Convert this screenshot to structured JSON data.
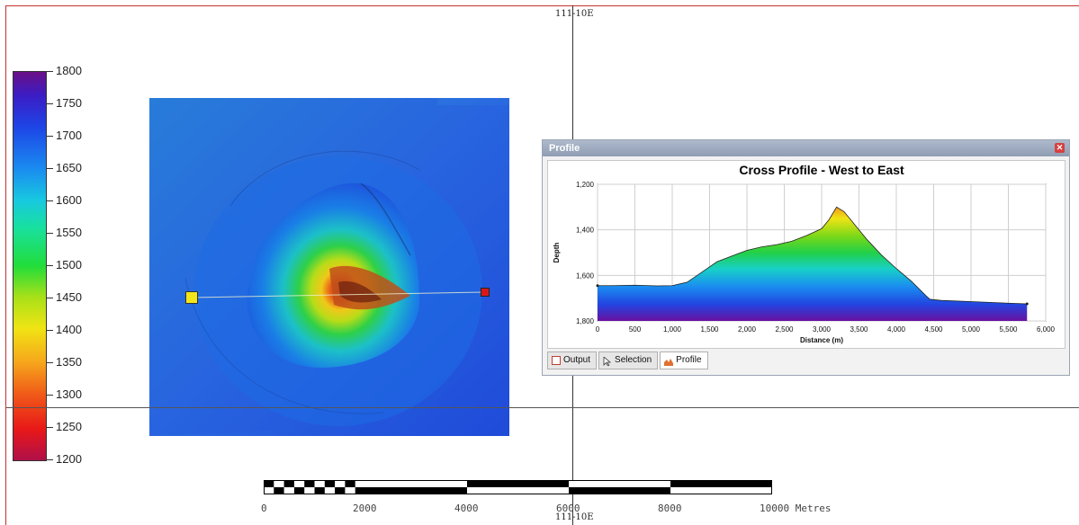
{
  "map": {
    "coord_top": "111-10E",
    "coord_bottom": "111-10E"
  },
  "legend": {
    "labels": [
      "1800",
      "1750",
      "1700",
      "1650",
      "1600",
      "1550",
      "1500",
      "1450",
      "1400",
      "1350",
      "1300",
      "1250",
      "1200"
    ],
    "min": 1200,
    "max": 1800
  },
  "markers": {
    "start_color": "#f2e61a",
    "end_color": "#d81818"
  },
  "profile_panel": {
    "title": "Profile",
    "close_icon": "close-icon",
    "tabs": [
      {
        "label": "Output",
        "icon": "output-icon"
      },
      {
        "label": "Selection",
        "icon": "cursor-icon"
      },
      {
        "label": "Profile",
        "icon": "profile-icon"
      }
    ]
  },
  "chart_data": {
    "type": "area",
    "title": "Cross Profile - West to East",
    "xlabel": "Distance (m)",
    "ylabel": "Depth",
    "xlim": [
      0,
      6000
    ],
    "ylim": [
      1200,
      1800
    ],
    "y_inverted": true,
    "grid": true,
    "x_ticks": [
      "0",
      "500",
      "1,000",
      "1,500",
      "2,000",
      "2,500",
      "3,000",
      "3,500",
      "4,000",
      "4,500",
      "5,000",
      "5,500",
      "6,000"
    ],
    "y_ticks": [
      "1,200",
      "1,400",
      "1,600",
      "1,800"
    ],
    "x": [
      0,
      200,
      500,
      800,
      1000,
      1200,
      1400,
      1600,
      1800,
      2000,
      2200,
      2400,
      2600,
      2800,
      3000,
      3100,
      3200,
      3300,
      3400,
      3600,
      3800,
      4000,
      4200,
      4400,
      4450,
      4600,
      5000,
      5500,
      5750
    ],
    "y": [
      1645,
      1645,
      1643,
      1646,
      1645,
      1630,
      1585,
      1540,
      1515,
      1490,
      1475,
      1465,
      1450,
      1425,
      1395,
      1355,
      1300,
      1320,
      1360,
      1440,
      1510,
      1570,
      1625,
      1690,
      1705,
      1710,
      1715,
      1722,
      1725
    ]
  },
  "scale_bar": {
    "labels": [
      "0",
      "2000",
      "4000",
      "6000",
      "8000",
      "10000 Metres"
    ]
  }
}
